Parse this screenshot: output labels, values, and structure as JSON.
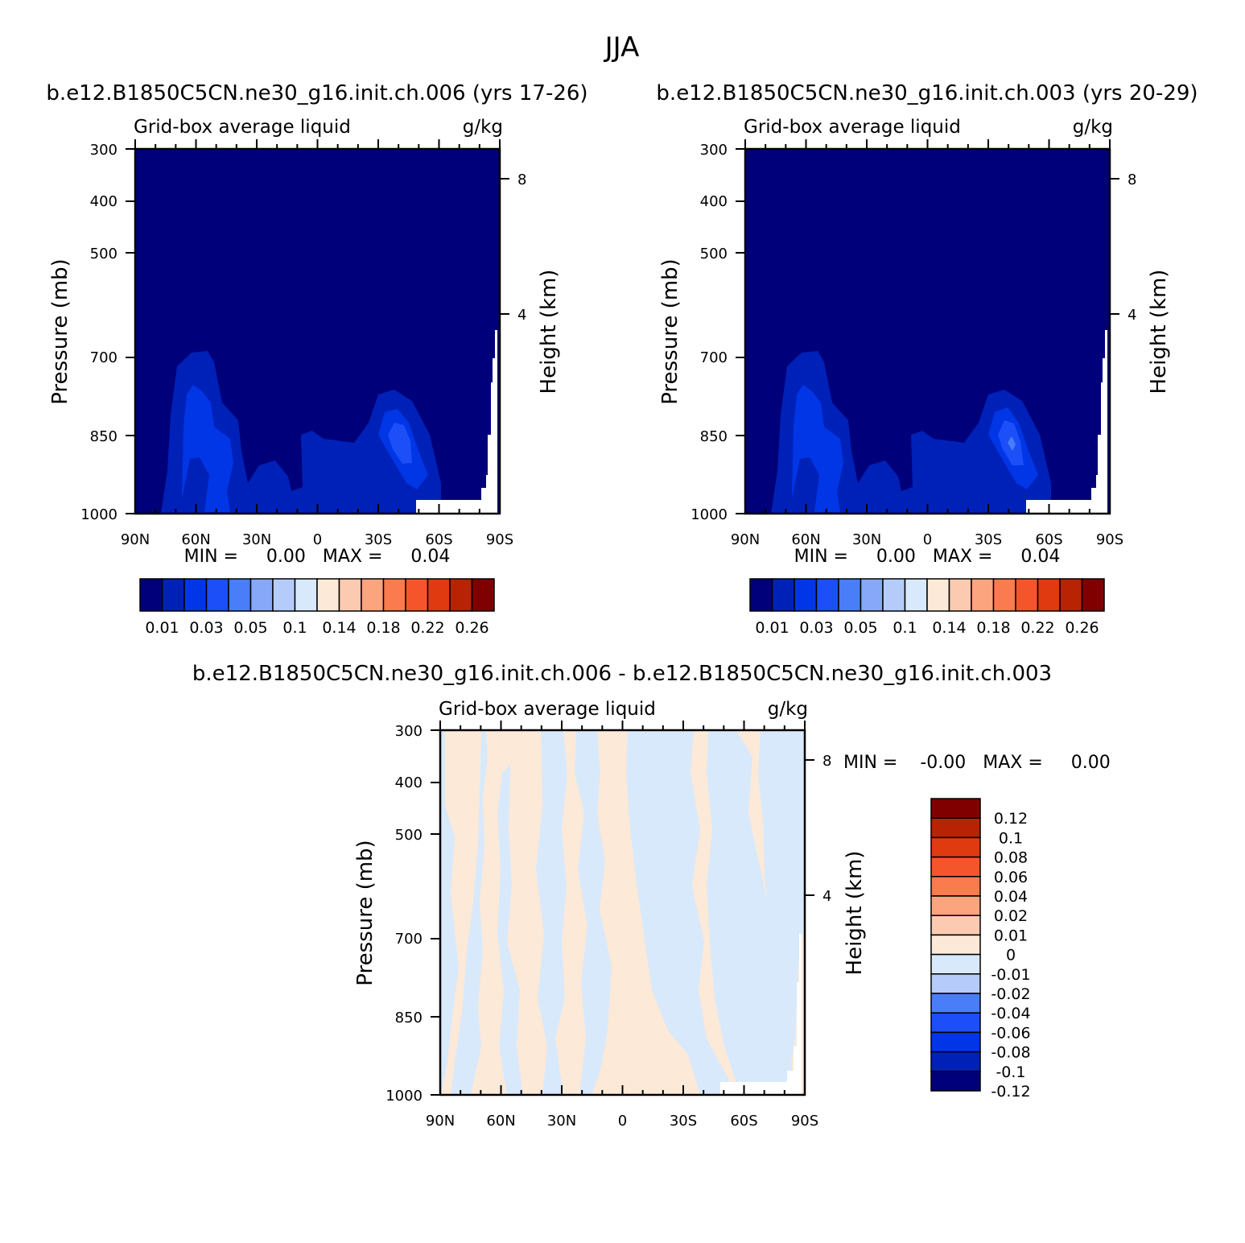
{
  "page_title": "JJA",
  "chart_data": [
    {
      "type": "heatmap",
      "title": "b.e12.B1850C5CN.ne30_g16.init.ch.006 (yrs 17-26)",
      "variable": "Grid-box average liquid",
      "units": "g/kg",
      "xlabel": "",
      "ylabel": "Pressure (mb)",
      "y2label": "Height (km)",
      "x_ticks": [
        "90N",
        "60N",
        "30N",
        "0",
        "30S",
        "60S",
        "90S"
      ],
      "y_ticks": [
        "300",
        "400",
        "500",
        "700",
        "850",
        "1000"
      ],
      "y2_ticks": [
        "8",
        "4"
      ],
      "ylim": [
        300,
        1000
      ],
      "min_text": "MIN =     0.00   MAX =     0.04",
      "colorbar_labels": [
        "0.01",
        "0.03",
        "0.05",
        "0.1",
        "0.14",
        "0.18",
        "0.22",
        "0.26"
      ],
      "colorbar_colors": [
        "#00007a",
        "#0021b8",
        "#0036e6",
        "#1d4ff8",
        "#4a7df8",
        "#87a8f9",
        "#b5ccfa",
        "#d8e9fb",
        "#fde9d8",
        "#fccab0",
        "#fba47e",
        "#f97b4e",
        "#f5552a",
        "#e03a10",
        "#b82304",
        "#800000"
      ]
    },
    {
      "type": "heatmap",
      "title": "b.e12.B1850C5CN.ne30_g16.init.ch.003 (yrs 20-29)",
      "variable": "Grid-box average liquid",
      "units": "g/kg",
      "xlabel": "",
      "ylabel": "Pressure (mb)",
      "y2label": "Height (km)",
      "x_ticks": [
        "90N",
        "60N",
        "30N",
        "0",
        "30S",
        "60S",
        "90S"
      ],
      "y_ticks": [
        "300",
        "400",
        "500",
        "700",
        "850",
        "1000"
      ],
      "y2_ticks": [
        "8",
        "4"
      ],
      "ylim": [
        300,
        1000
      ],
      "min_text": "MIN =     0.00   MAX =     0.04",
      "colorbar_labels": [
        "0.01",
        "0.03",
        "0.05",
        "0.1",
        "0.14",
        "0.18",
        "0.22",
        "0.26"
      ],
      "colorbar_colors": [
        "#00007a",
        "#0021b8",
        "#0036e6",
        "#1d4ff8",
        "#4a7df8",
        "#87a8f9",
        "#b5ccfa",
        "#d8e9fb",
        "#fde9d8",
        "#fccab0",
        "#fba47e",
        "#f97b4e",
        "#f5552a",
        "#e03a10",
        "#b82304",
        "#800000"
      ]
    },
    {
      "type": "heatmap",
      "title": "b.e12.B1850C5CN.ne30_g16.init.ch.006 - b.e12.B1850C5CN.ne30_g16.init.ch.003",
      "variable": "Grid-box average liquid",
      "units": "g/kg",
      "xlabel": "",
      "ylabel": "Pressure (mb)",
      "y2label": "Height (km)",
      "x_ticks": [
        "90N",
        "60N",
        "30N",
        "0",
        "30S",
        "60S",
        "90S"
      ],
      "y_ticks": [
        "300",
        "400",
        "500",
        "700",
        "850",
        "1000"
      ],
      "y2_ticks": [
        "8",
        "4"
      ],
      "ylim": [
        300,
        1000
      ],
      "min_text": "MIN =    -0.00   MAX =     0.00",
      "colorbar_labels": [
        "0.12",
        "0.1",
        "0.08",
        "0.06",
        "0.04",
        "0.02",
        "0.01",
        "0",
        "-0.01",
        "-0.02",
        "-0.04",
        "-0.06",
        "-0.08",
        "-0.1",
        "-0.12"
      ],
      "colorbar_colors": [
        "#800000",
        "#b82304",
        "#e03a10",
        "#f5552a",
        "#f97b4e",
        "#fba47e",
        "#fccab0",
        "#fde9d8",
        "#d8e9fb",
        "#b5ccfa",
        "#4a7df8",
        "#1d4ff8",
        "#0036e6",
        "#0021b8",
        "#00007a"
      ]
    }
  ]
}
